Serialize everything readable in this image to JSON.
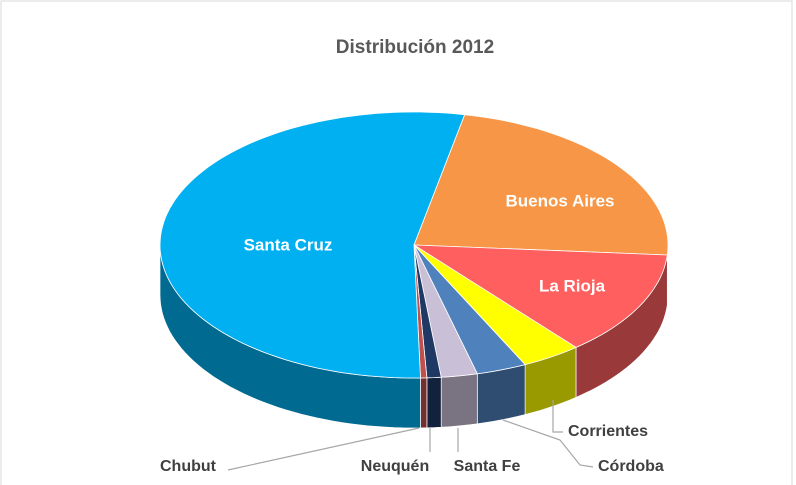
{
  "chart_data": {
    "type": "pie3d",
    "title": "Distribución 2012",
    "categories": [
      "Buenos Aires",
      "La Rioja",
      "Corrientes",
      "Córdoba",
      "Santa Fe",
      "Neuquén",
      "Chubut",
      "Santa Cruz"
    ],
    "values": [
      23,
      12.8,
      3.8,
      3.2,
      2.3,
      0.9,
      0.4,
      53.6
    ],
    "colors": [
      "#f79646",
      "#ff5f5f",
      "#ffff00",
      "#4f81bd",
      "#c9c0d8",
      "#1f3864",
      "#c0504d",
      "#00b0f0"
    ]
  }
}
